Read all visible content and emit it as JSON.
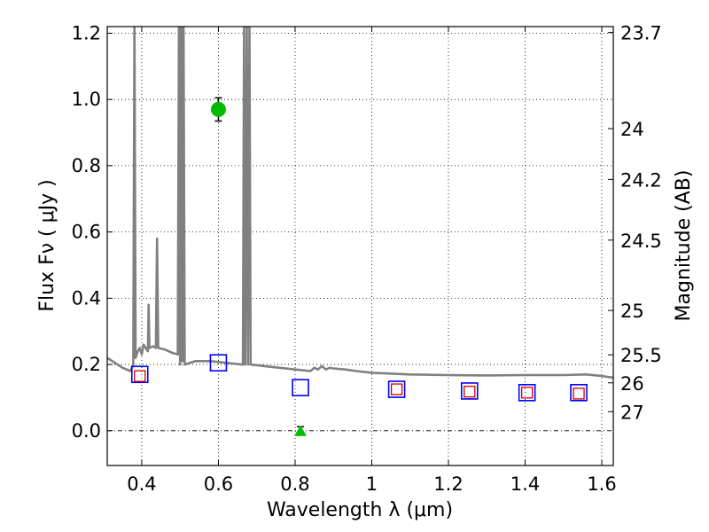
{
  "chart_data": {
    "type": "scatter",
    "xlabel": "Wavelength  λ (μm)",
    "ylabel": "Flux  Fν  ( μJy )",
    "y2label": "Magnitude (AB)",
    "xlim": [
      0.31,
      1.63
    ],
    "ylim": [
      -0.105,
      1.22
    ],
    "grid": true,
    "x_ticks": [
      0.4,
      0.6,
      0.8,
      1.0,
      1.2,
      1.4,
      1.6
    ],
    "x_tick_labels": [
      "0.4",
      "0.6",
      "0.8",
      "1",
      "1.2",
      "1.4",
      "1.6"
    ],
    "y_ticks": [
      0.0,
      0.2,
      0.4,
      0.6,
      0.8,
      1.0,
      1.2
    ],
    "y_tick_labels": [
      "0.0",
      "0.2",
      "0.4",
      "0.6",
      "0.8",
      "1.0",
      "1.2"
    ],
    "mag_ticks": [
      23.7,
      24,
      24.2,
      24.5,
      25,
      25.5,
      26,
      27
    ],
    "mag_tick_labels": [
      "23.7",
      "24",
      "24.2",
      "24.5",
      "25",
      "25.5",
      "26",
      "27"
    ],
    "colors": {
      "template": "#808080",
      "model_box": "#0000ff",
      "observed_box": "#cc0000",
      "detection": "#00bb00",
      "errorbar": "#000000"
    },
    "template_spectrum": [
      {
        "x": 0.31,
        "y": 0.22
      },
      {
        "x": 0.33,
        "y": 0.205
      },
      {
        "x": 0.35,
        "y": 0.19
      },
      {
        "x": 0.37,
        "y": 0.18
      },
      {
        "x": 0.378,
        "y": 0.2
      },
      {
        "x": 0.381,
        "y": 1.22
      },
      {
        "x": 0.384,
        "y": 0.22
      },
      {
        "x": 0.39,
        "y": 0.24
      },
      {
        "x": 0.395,
        "y": 0.25
      },
      {
        "x": 0.4,
        "y": 0.23
      },
      {
        "x": 0.405,
        "y": 0.26
      },
      {
        "x": 0.41,
        "y": 0.25
      },
      {
        "x": 0.416,
        "y": 0.24
      },
      {
        "x": 0.418,
        "y": 0.38
      },
      {
        "x": 0.42,
        "y": 0.25
      },
      {
        "x": 0.43,
        "y": 0.255
      },
      {
        "x": 0.437,
        "y": 0.25
      },
      {
        "x": 0.44,
        "y": 0.58
      },
      {
        "x": 0.443,
        "y": 0.25
      },
      {
        "x": 0.46,
        "y": 0.245
      },
      {
        "x": 0.48,
        "y": 0.235
      },
      {
        "x": 0.494,
        "y": 0.23
      },
      {
        "x": 0.497,
        "y": 1.22
      },
      {
        "x": 0.5,
        "y": 0.2
      },
      {
        "x": 0.503,
        "y": 1.22
      },
      {
        "x": 0.506,
        "y": 0.21
      },
      {
        "x": 0.509,
        "y": 1.22
      },
      {
        "x": 0.512,
        "y": 0.2
      },
      {
        "x": 0.54,
        "y": 0.21
      },
      {
        "x": 0.58,
        "y": 0.21
      },
      {
        "x": 0.62,
        "y": 0.205
      },
      {
        "x": 0.66,
        "y": 0.2
      },
      {
        "x": 0.664,
        "y": 0.2
      },
      {
        "x": 0.667,
        "y": 1.22
      },
      {
        "x": 0.67,
        "y": 0.2
      },
      {
        "x": 0.674,
        "y": 1.22
      },
      {
        "x": 0.677,
        "y": 0.2
      },
      {
        "x": 0.681,
        "y": 1.22
      },
      {
        "x": 0.684,
        "y": 0.2
      },
      {
        "x": 0.72,
        "y": 0.195
      },
      {
        "x": 0.8,
        "y": 0.185
      },
      {
        "x": 0.84,
        "y": 0.18
      },
      {
        "x": 0.85,
        "y": 0.19
      },
      {
        "x": 0.86,
        "y": 0.185
      },
      {
        "x": 0.87,
        "y": 0.195
      },
      {
        "x": 0.88,
        "y": 0.185
      },
      {
        "x": 0.89,
        "y": 0.19
      },
      {
        "x": 0.9,
        "y": 0.188
      },
      {
        "x": 0.93,
        "y": 0.185
      },
      {
        "x": 0.96,
        "y": 0.18
      },
      {
        "x": 1.0,
        "y": 0.175
      },
      {
        "x": 1.1,
        "y": 0.17
      },
      {
        "x": 1.2,
        "y": 0.168
      },
      {
        "x": 1.3,
        "y": 0.167
      },
      {
        "x": 1.4,
        "y": 0.168
      },
      {
        "x": 1.5,
        "y": 0.168
      },
      {
        "x": 1.56,
        "y": 0.17
      },
      {
        "x": 1.6,
        "y": 0.165
      },
      {
        "x": 1.63,
        "y": 0.16
      }
    ],
    "model_photometry": [
      {
        "x": 0.395,
        "y": 0.17
      },
      {
        "x": 0.6,
        "y": 0.205
      },
      {
        "x": 0.814,
        "y": 0.13
      },
      {
        "x": 1.065,
        "y": 0.125
      },
      {
        "x": 1.255,
        "y": 0.12
      },
      {
        "x": 1.405,
        "y": 0.115
      },
      {
        "x": 1.54,
        "y": 0.115
      }
    ],
    "observed_photometry": [
      {
        "x": 0.395,
        "y": 0.165
      },
      {
        "x": 1.065,
        "y": 0.125
      },
      {
        "x": 1.255,
        "y": 0.118
      },
      {
        "x": 1.405,
        "y": 0.115
      },
      {
        "x": 1.54,
        "y": 0.112
      }
    ],
    "detections": [
      {
        "x": 0.6,
        "y": 0.97,
        "err": 0.035
      }
    ],
    "upper_limits": [
      {
        "x": 0.814,
        "y": 0.0,
        "err": 0.012
      }
    ]
  }
}
